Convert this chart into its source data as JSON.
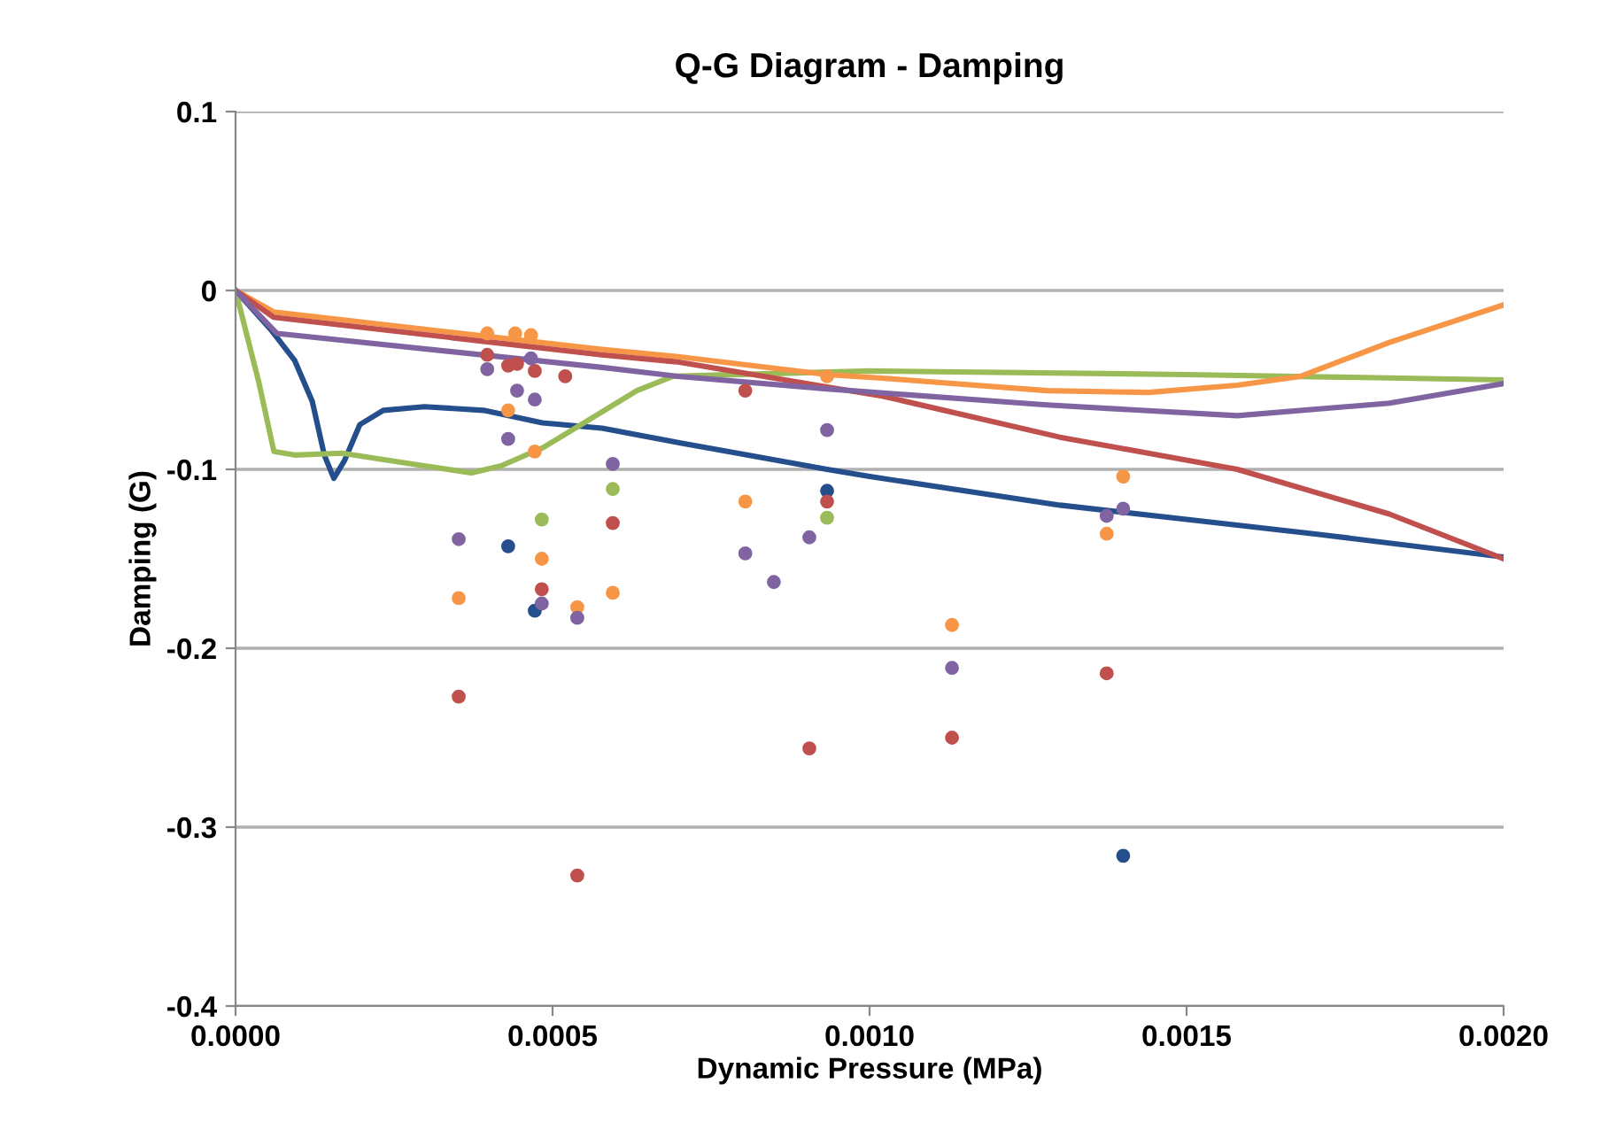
{
  "chart_data": {
    "type": "line",
    "title": "Q-G Diagram - Damping",
    "xlabel": "Dynamic Pressure (MPa)",
    "ylabel": "Damping (G)",
    "xlim": [
      0,
      0.002
    ],
    "ylim": [
      -0.4,
      0.1
    ],
    "xticks": [
      {
        "value": 0,
        "label": "0.0000"
      },
      {
        "value": 0.0005,
        "label": "0.0005"
      },
      {
        "value": 0.001,
        "label": "0.0010"
      },
      {
        "value": 0.0015,
        "label": "0.0015"
      },
      {
        "value": 0.002,
        "label": "0.0020"
      }
    ],
    "yticks": [
      -0.4,
      -0.3,
      -0.2,
      -0.1,
      0,
      0.1
    ],
    "grid": "y",
    "legend": false,
    "line_style": "solid",
    "marker": "none",
    "series": [
      {
        "color": "#254f8c",
        "x": [
          0,
          5.59e-05,
          9.31e-05,
          0.000121,
          0.00014,
          0.000155,
          0.000172,
          0.000196,
          0.000233,
          0.000298,
          0.000391,
          0.000484,
          0.000578,
          0.000698,
          0.000933,
          0.001,
          0.0013,
          0.0015,
          0.0017,
          0.002
        ],
        "values": [
          0,
          -0.022,
          -0.039,
          -0.062,
          -0.092,
          -0.105,
          -0.095,
          -0.075,
          -0.067,
          -0.065,
          -0.067,
          -0.074,
          -0.077,
          -0.085,
          -0.1,
          -0.104,
          -0.12,
          -0.128,
          -0.136,
          -0.149
        ]
      },
      {
        "color": "#9bbb59",
        "x": [
          0,
          3.72e-05,
          6.05e-05,
          9.31e-05,
          0.000168,
          0.000279,
          0.000372,
          0.000419,
          0.000484,
          0.000559,
          0.000633,
          0.00069,
          0.001,
          0.0015,
          0.002
        ],
        "values": [
          0,
          -0.052,
          -0.09,
          -0.092,
          -0.091,
          -0.097,
          -0.102,
          -0.098,
          -0.088,
          -0.072,
          -0.056,
          -0.048,
          -0.045,
          -0.047,
          -0.05
        ]
      },
      {
        "color": "#f79646",
        "x": [
          0,
          6e-05,
          0.000578,
          0.000698,
          0.000933,
          0.00102,
          0.00128,
          0.00144,
          0.00158,
          0.00168,
          0.00182,
          0.002
        ],
        "values": [
          0,
          -0.012,
          -0.033,
          -0.037,
          -0.047,
          -0.049,
          -0.056,
          -0.057,
          -0.053,
          -0.048,
          -0.029,
          -0.008
        ]
      },
      {
        "color": "#c0504d",
        "x": [
          0,
          6e-05,
          0.000578,
          0.000698,
          0.000933,
          0.00102,
          0.0013,
          0.00158,
          0.00182,
          0.002
        ],
        "values": [
          0,
          -0.015,
          -0.036,
          -0.04,
          -0.054,
          -0.059,
          -0.082,
          -0.1,
          -0.125,
          -0.15
        ]
      },
      {
        "color": "#8064a2",
        "x": [
          0,
          6.52e-05,
          0.000578,
          0.000698,
          0.000933,
          0.00128,
          0.00158,
          0.00182,
          0.002
        ],
        "values": [
          0,
          -0.024,
          -0.043,
          -0.048,
          -0.055,
          -0.064,
          -0.07,
          -0.063,
          -0.052
        ]
      },
      {
        "type": "scatter",
        "marker": "circle",
        "color": "#254f8c",
        "x": [
          0.00043,
          0.000472,
          0.000933,
          0.0014
        ],
        "values": [
          -0.143,
          -0.179,
          -0.112,
          -0.316
        ]
      },
      {
        "type": "scatter",
        "marker": "circle",
        "color": "#9bbb59",
        "x": [
          0.000595,
          0.000483,
          0.000933
        ],
        "values": [
          -0.111,
          -0.128,
          -0.127
        ]
      },
      {
        "type": "scatter",
        "marker": "circle",
        "color": "#f79646",
        "x": [
          0.000397,
          0.000441,
          0.000466,
          0.00043,
          0.000472,
          0.000483,
          0.000352,
          0.000539,
          0.000595,
          0.000933,
          0.000804,
          0.00113,
          0.0014,
          0.001374
        ],
        "values": [
          -0.024,
          -0.024,
          -0.025,
          -0.067,
          -0.09,
          -0.15,
          -0.172,
          -0.177,
          -0.169,
          -0.048,
          -0.118,
          -0.187,
          -0.104,
          -0.136
        ]
      },
      {
        "type": "scatter",
        "marker": "circle",
        "color": "#c0504d",
        "x": [
          0.000397,
          0.00043,
          0.000444,
          0.000472,
          0.00052,
          0.000595,
          0.000483,
          0.000352,
          0.000539,
          0.000804,
          0.000933,
          0.000905,
          0.00113,
          0.001374
        ],
        "values": [
          -0.036,
          -0.042,
          -0.041,
          -0.045,
          -0.048,
          -0.13,
          -0.167,
          -0.227,
          -0.327,
          -0.056,
          -0.118,
          -0.256,
          -0.25,
          -0.214
        ]
      },
      {
        "type": "scatter",
        "marker": "circle",
        "color": "#8064a2",
        "x": [
          0.000397,
          0.000466,
          0.000444,
          0.000472,
          0.00043,
          0.000595,
          0.000352,
          0.000483,
          0.000539,
          0.000933,
          0.000804,
          0.000849,
          0.000905,
          0.00113,
          0.0014,
          0.001374
        ],
        "values": [
          -0.044,
          -0.038,
          -0.056,
          -0.061,
          -0.083,
          -0.097,
          -0.139,
          -0.175,
          -0.183,
          -0.078,
          -0.147,
          -0.163,
          -0.138,
          -0.211,
          -0.122,
          -0.126
        ]
      }
    ]
  }
}
